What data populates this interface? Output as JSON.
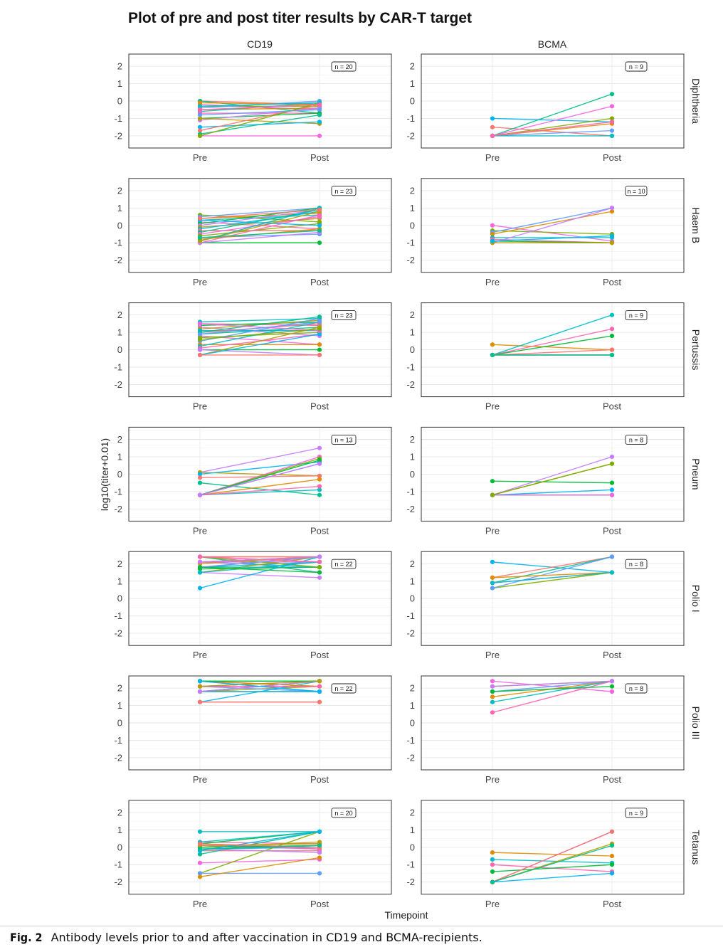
{
  "title": "Plot of pre and post titer results by CAR-T target",
  "caption": {
    "label": "Fig. 2",
    "text": "Antibody levels prior to and after vaccination in CD19 and BCMA-recipients."
  },
  "chart_data": {
    "type": "line",
    "xlabel": "Timepoint",
    "ylabel": "log10(titer+0.01)",
    "x_categories": [
      "Pre",
      "Post"
    ],
    "y_ticks": [
      2,
      1,
      0,
      -1,
      -2
    ],
    "ylim": [
      -2.7,
      2.7
    ],
    "columns": [
      "CD19",
      "BCMA"
    ],
    "rows": [
      "Diphtheria",
      "Haem B",
      "Pertussis",
      "Pneum",
      "Polio I",
      "Polio III",
      "Tetanus"
    ],
    "palette": [
      "#F8766D",
      "#DE8C00",
      "#B79F00",
      "#7CAE00",
      "#00BA38",
      "#00C08B",
      "#00BFC4",
      "#00B4F0",
      "#619CFF",
      "#C77CFF",
      "#F564E3",
      "#FF64B0"
    ],
    "panels": [
      {
        "row": "Diphtheria",
        "col": "CD19",
        "n_label": "n = 20",
        "pairs": [
          [
            0,
            -0.2
          ],
          [
            0,
            -0.7
          ],
          [
            -0.2,
            -0.5
          ],
          [
            -0.3,
            -0.3
          ],
          [
            -0.4,
            0
          ],
          [
            -0.5,
            -0.4
          ],
          [
            -0.6,
            -0.1
          ],
          [
            -0.7,
            -0.7
          ],
          [
            -1.0,
            -0.7
          ],
          [
            -1.1,
            -0.4
          ],
          [
            -1.0,
            -1.3
          ],
          [
            -1.5,
            -1.2
          ],
          [
            -1.7,
            -0.2
          ],
          [
            -1.9,
            -0.8
          ],
          [
            -2.0,
            -2.0
          ],
          [
            -2.0,
            -0.1
          ],
          [
            -0.8,
            -0.5
          ],
          [
            -0.1,
            -0.2
          ],
          [
            -0.3,
            -0.1
          ],
          [
            -0.5,
            -0.2
          ]
        ]
      },
      {
        "row": "Diphtheria",
        "col": "BCMA",
        "n_label": "n = 9",
        "pairs": [
          [
            -1.0,
            -1.2
          ],
          [
            -1.5,
            -2.0
          ],
          [
            -2.0,
            0.4
          ],
          [
            -2.0,
            -0.3
          ],
          [
            -2.0,
            -1.0
          ],
          [
            -2.0,
            -1.7
          ],
          [
            -2.0,
            -1.3
          ],
          [
            -2.0,
            -2.0
          ],
          [
            -2.0,
            -1.2
          ]
        ]
      },
      {
        "row": "Haem B",
        "col": "CD19",
        "n_label": "n = 23",
        "pairs": [
          [
            0.6,
            0.2
          ],
          [
            0.5,
            1.0
          ],
          [
            0.4,
            0.7
          ],
          [
            0.3,
            0.6
          ],
          [
            0.2,
            -0.2
          ],
          [
            0.1,
            1.0
          ],
          [
            0,
            0.9
          ],
          [
            -0.1,
            0.4
          ],
          [
            -0.2,
            0.8
          ],
          [
            -0.3,
            -0.3
          ],
          [
            -0.4,
            0.9
          ],
          [
            -0.5,
            0.5
          ],
          [
            -0.6,
            0.1
          ],
          [
            -0.7,
            -0.5
          ],
          [
            -0.8,
            -0.2
          ],
          [
            -0.9,
            1.0
          ],
          [
            -1.0,
            0.6
          ],
          [
            -1.0,
            -1.0
          ],
          [
            -1.0,
            -0.4
          ],
          [
            -0.9,
            0.8
          ],
          [
            0.3,
            0.0
          ],
          [
            0.4,
            0.9
          ],
          [
            -0.7,
            -0.3
          ]
        ]
      },
      {
        "row": "Haem B",
        "col": "BCMA",
        "n_label": "n = 10",
        "pairs": [
          [
            0,
            -0.9
          ],
          [
            -0.3,
            -0.5
          ],
          [
            -0.4,
            1.0
          ],
          [
            -0.5,
            0.8
          ],
          [
            -0.7,
            -0.7
          ],
          [
            -0.8,
            -1.0
          ],
          [
            -0.9,
            -1.0
          ],
          [
            -1.0,
            1.0
          ],
          [
            -1.0,
            -1.0
          ],
          [
            -0.9,
            -0.6
          ]
        ]
      },
      {
        "row": "Pertussis",
        "col": "CD19",
        "n_label": "n = 23",
        "pairs": [
          [
            1.6,
            1.8
          ],
          [
            1.5,
            1.4
          ],
          [
            1.4,
            1.6
          ],
          [
            1.3,
            0.8
          ],
          [
            1.2,
            1.7
          ],
          [
            1.1,
            1.1
          ],
          [
            1.0,
            1.5
          ],
          [
            0.9,
            1.3
          ],
          [
            0.8,
            0.3
          ],
          [
            0.7,
            1.0
          ],
          [
            0.5,
            1.8
          ],
          [
            0.3,
            0.3
          ],
          [
            0.2,
            1.6
          ],
          [
            0.1,
            0.9
          ],
          [
            0,
            0
          ],
          [
            0,
            -0.3
          ],
          [
            -0.3,
            1.3
          ],
          [
            -0.3,
            0.9
          ],
          [
            -0.3,
            -0.3
          ],
          [
            1.0,
            1.9
          ],
          [
            1.5,
            1.1
          ],
          [
            0.6,
            1.2
          ],
          [
            0.9,
            1.6
          ]
        ]
      },
      {
        "row": "Pertussis",
        "col": "BCMA",
        "n_label": "n = 9",
        "pairs": [
          [
            0.3,
            0
          ],
          [
            -0.3,
            2.0
          ],
          [
            -0.3,
            1.2
          ],
          [
            -0.3,
            0.8
          ],
          [
            -0.3,
            -0.3
          ],
          [
            -0.3,
            -0.3
          ],
          [
            -0.3,
            -0.3
          ],
          [
            -0.3,
            0
          ],
          [
            -0.3,
            -0.3
          ]
        ]
      },
      {
        "row": "Pneum",
        "col": "CD19",
        "n_label": "n = 13",
        "pairs": [
          [
            0.1,
            1.5
          ],
          [
            0.1,
            -0.1
          ],
          [
            0,
            0.7
          ],
          [
            -0.2,
            -0.1
          ],
          [
            -0.5,
            -1.2
          ],
          [
            -1.2,
            1.0
          ],
          [
            -1.2,
            0.9
          ],
          [
            -1.2,
            0.6
          ],
          [
            -1.2,
            -0.3
          ],
          [
            -1.2,
            -0.9
          ],
          [
            -1.2,
            -0.7
          ],
          [
            -1.2,
            0.8
          ],
          [
            -1.2,
            0.6
          ]
        ]
      },
      {
        "row": "Pneum",
        "col": "BCMA",
        "n_label": "n = 8",
        "pairs": [
          [
            -0.4,
            -0.5
          ],
          [
            -1.2,
            1.0
          ],
          [
            -1.2,
            0.6
          ],
          [
            -1.2,
            -0.9
          ],
          [
            -1.2,
            -1.2
          ],
          [
            -1.2,
            -1.2
          ],
          [
            -1.2,
            -1.2
          ],
          [
            -1.2,
            0.6
          ]
        ]
      },
      {
        "row": "Polio I",
        "col": "CD19",
        "n_label": "n = 22",
        "pairs": [
          [
            2.4,
            2.4
          ],
          [
            2.4,
            1.5
          ],
          [
            2.4,
            2.1
          ],
          [
            2.1,
            2.4
          ],
          [
            2.1,
            1.8
          ],
          [
            2.0,
            2.4
          ],
          [
            1.8,
            2.1
          ],
          [
            1.8,
            2.4
          ],
          [
            1.7,
            1.8
          ],
          [
            1.5,
            1.2
          ],
          [
            1.5,
            2.4
          ],
          [
            0.6,
            2.4
          ],
          [
            2.4,
            2.4
          ],
          [
            1.8,
            1.8
          ],
          [
            2.1,
            2.1
          ],
          [
            2.4,
            1.8
          ],
          [
            1.8,
            2.4
          ],
          [
            2.1,
            2.4
          ],
          [
            1.5,
            2.1
          ],
          [
            2.4,
            2.1
          ],
          [
            1.8,
            1.5
          ],
          [
            2.1,
            2.4
          ]
        ]
      },
      {
        "row": "Polio I",
        "col": "BCMA",
        "n_label": "n = 8",
        "pairs": [
          [
            2.1,
            1.5
          ],
          [
            1.2,
            2.4
          ],
          [
            0.9,
            2.4
          ],
          [
            0.9,
            1.5
          ],
          [
            0.6,
            1.5
          ],
          [
            0.6,
            2.4
          ],
          [
            1.2,
            1.5
          ],
          [
            0.9,
            1.5
          ]
        ]
      },
      {
        "row": "Polio III",
        "col": "CD19",
        "n_label": "n = 22",
        "pairs": [
          [
            2.4,
            2.4
          ],
          [
            2.4,
            1.8
          ],
          [
            2.4,
            2.1
          ],
          [
            2.1,
            2.4
          ],
          [
            2.1,
            2.1
          ],
          [
            1.8,
            2.4
          ],
          [
            1.8,
            1.8
          ],
          [
            1.8,
            2.1
          ],
          [
            1.2,
            2.4
          ],
          [
            1.2,
            1.2
          ],
          [
            2.4,
            2.4
          ],
          [
            2.1,
            2.4
          ],
          [
            1.8,
            2.4
          ],
          [
            2.1,
            1.8
          ],
          [
            2.4,
            2.1
          ],
          [
            1.8,
            1.8
          ],
          [
            2.1,
            2.1
          ],
          [
            2.4,
            2.4
          ],
          [
            1.8,
            2.4
          ],
          [
            2.1,
            2.4
          ],
          [
            2.4,
            1.8
          ],
          [
            1.2,
            1.2
          ]
        ]
      },
      {
        "row": "Polio III",
        "col": "BCMA",
        "n_label": "n = 8",
        "pairs": [
          [
            2.4,
            1.8
          ],
          [
            2.1,
            2.4
          ],
          [
            1.8,
            2.4
          ],
          [
            1.5,
            2.4
          ],
          [
            1.2,
            2.4
          ],
          [
            0.6,
            2.4
          ],
          [
            1.8,
            2.1
          ],
          [
            2.1,
            2.4
          ]
        ]
      },
      {
        "row": "Tetanus",
        "col": "CD19",
        "n_label": "n = 20",
        "pairs": [
          [
            0.9,
            0.9
          ],
          [
            0.3,
            0.2
          ],
          [
            0.2,
            0.9
          ],
          [
            0.1,
            -0.1
          ],
          [
            0,
            0.3
          ],
          [
            -0.1,
            0
          ],
          [
            -0.2,
            -0.2
          ],
          [
            -0.4,
            0.9
          ],
          [
            -0.9,
            -0.7
          ],
          [
            -1.5,
            0.9
          ],
          [
            -1.5,
            -1.5
          ],
          [
            -1.7,
            -0.6
          ],
          [
            0.3,
            0.9
          ],
          [
            0.2,
            -0.1
          ],
          [
            0,
            0.1
          ],
          [
            -0.1,
            -0.3
          ],
          [
            0.1,
            0.2
          ],
          [
            -0.2,
            0.9
          ],
          [
            0.2,
            0
          ],
          [
            -0.1,
            0.1
          ]
        ]
      },
      {
        "row": "Tetanus",
        "col": "BCMA",
        "n_label": "n = 9",
        "pairs": [
          [
            -0.3,
            -0.5
          ],
          [
            -0.7,
            -0.9
          ],
          [
            -1.0,
            -1.4
          ],
          [
            -1.4,
            -1.0
          ],
          [
            -2.0,
            0.9
          ],
          [
            -2.0,
            0.2
          ],
          [
            -2.0,
            -1.5
          ],
          [
            -2.0,
            0.9
          ],
          [
            -2.0,
            0.1
          ]
        ]
      }
    ]
  }
}
